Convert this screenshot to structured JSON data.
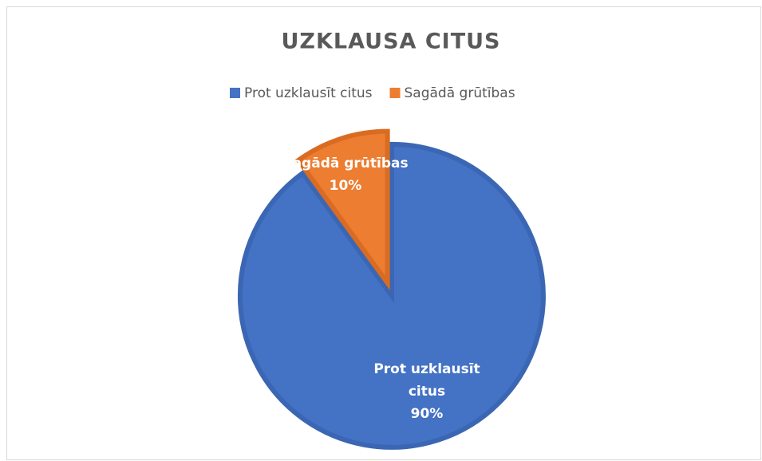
{
  "chart_data": {
    "type": "pie",
    "title": "UZKLAUSA CITUS",
    "categories": [
      "Prot uzklausīt citus",
      "Sagādā grūtības"
    ],
    "values": [
      90,
      10
    ],
    "value_labels": [
      "90%",
      "10%"
    ],
    "colors": [
      "#4472c4",
      "#ed7d31"
    ],
    "legend": "top"
  }
}
